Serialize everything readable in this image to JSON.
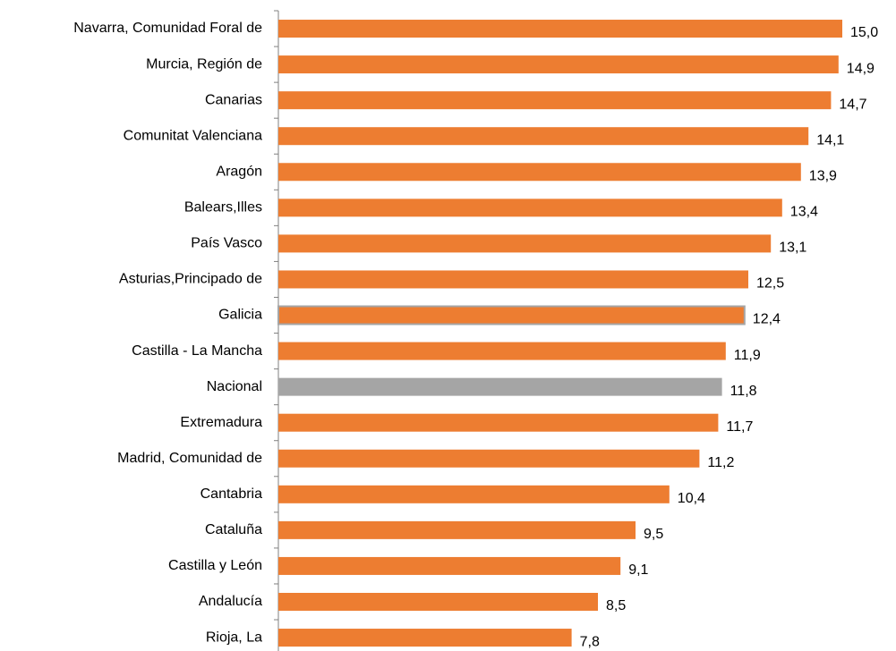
{
  "chart_data": {
    "type": "barh",
    "categories": [
      "Navarra, Comunidad Foral de",
      "Murcia, Región de",
      "Canarias",
      "Comunitat Valenciana",
      "Aragón",
      "Balears,Illes",
      "País Vasco",
      "Asturias,Principado de",
      "Galicia",
      "Castilla - La Mancha",
      "Nacional",
      "Extremadura",
      "Madrid, Comunidad de",
      "Cantabria",
      "Cataluña",
      "Castilla y León",
      "Andalucía",
      "Rioja, La"
    ],
    "values": [
      15.0,
      14.9,
      14.7,
      14.1,
      13.9,
      13.4,
      13.1,
      12.5,
      12.4,
      11.9,
      11.8,
      11.7,
      11.2,
      10.4,
      9.5,
      9.1,
      8.5,
      7.8
    ],
    "value_labels": [
      "15,0",
      "14,9",
      "14,7",
      "14,1",
      "13,9",
      "13,4",
      "13,1",
      "12,5",
      "12,4",
      "11,9",
      "11,8",
      "11,7",
      "11,2",
      "10,4",
      "9,5",
      "9,1",
      "8,5",
      "7,8"
    ],
    "colors": [
      "#ed7d31",
      "#ed7d31",
      "#ed7d31",
      "#ed7d31",
      "#ed7d31",
      "#ed7d31",
      "#ed7d31",
      "#ed7d31",
      "#ed7d31",
      "#ed7d31",
      "#a5a5a5",
      "#ed7d31",
      "#ed7d31",
      "#ed7d31",
      "#ed7d31",
      "#ed7d31",
      "#ed7d31",
      "#ed7d31"
    ],
    "edge_colors": [
      null,
      null,
      null,
      null,
      null,
      null,
      null,
      null,
      "#a5a5a5",
      null,
      null,
      null,
      null,
      null,
      null,
      null,
      null,
      null
    ],
    "xlim": [
      0,
      15
    ]
  }
}
